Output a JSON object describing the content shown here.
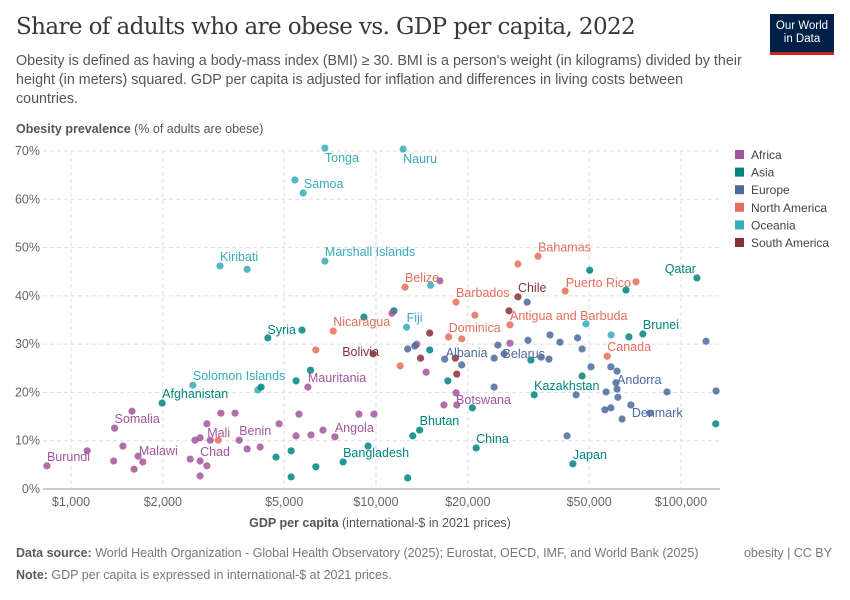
{
  "header": {
    "title": "Share of adults who are obese vs. GDP per capita, 2022",
    "subtitle": "Obesity is defined as having a body-mass index (BMI) ≥ 30. BMI is a person's weight (in kilograms) divided by their height (in meters) squared. GDP per capita is adjusted for inflation and differences in living costs between countries.",
    "logo": "Our World in Data"
  },
  "footer": {
    "source_label": "Data source:",
    "source": " World Health Organization - Global Health Observatory (2025); Eurostat, OECD, IMF, and World Bank (2025)",
    "note_label": "Note:",
    "note": " GDP per capita is expressed in international-$ at 2021 prices.",
    "license": "obesity | CC BY"
  },
  "chart_data": {
    "type": "scatter",
    "title": "Share of adults who are obese vs. GDP per capita, 2022",
    "ylabel_bold": "Obesity prevalence",
    "ylabel_rest": " (% of adults are obese)",
    "xlabel_bold": "GDP per capita",
    "xlabel_rest": " (international-$ in 2021 prices)",
    "x_scale": "log",
    "xlim": [
      810,
      134000
    ],
    "ylim": [
      0,
      70
    ],
    "grid": true,
    "x_ticks": [
      {
        "v": 1000,
        "label": "$1,000"
      },
      {
        "v": 2000,
        "label": "$2,000"
      },
      {
        "v": 5000,
        "label": "$5,000"
      },
      {
        "v": 10000,
        "label": "$10,000"
      },
      {
        "v": 20000,
        "label": "$20,000"
      },
      {
        "v": 50000,
        "label": "$50,000"
      },
      {
        "v": 100000,
        "label": "$100,000"
      }
    ],
    "y_ticks": [
      {
        "v": 0,
        "label": "0%"
      },
      {
        "v": 10,
        "label": "10%"
      },
      {
        "v": 20,
        "label": "20%"
      },
      {
        "v": 30,
        "label": "30%"
      },
      {
        "v": 40,
        "label": "40%"
      },
      {
        "v": 50,
        "label": "50%"
      },
      {
        "v": 60,
        "label": "60%"
      },
      {
        "v": 70,
        "label": "70%"
      }
    ],
    "legend_position": "right",
    "regions": [
      {
        "name": "Africa",
        "color": "#a2559c"
      },
      {
        "name": "Asia",
        "color": "#00847e"
      },
      {
        "name": "Europe",
        "color": "#4c6a9c"
      },
      {
        "name": "North America",
        "color": "#e56e5a"
      },
      {
        "name": "Oceania",
        "color": "#38aaba"
      },
      {
        "name": "South America",
        "color": "#883039"
      }
    ],
    "points": [
      {
        "r": "Oceania",
        "x": 6800,
        "y": 70.6,
        "label": "Tonga"
      },
      {
        "r": "Oceania",
        "x": 12270,
        "y": 70.4,
        "label": "Nauru"
      },
      {
        "r": "Oceania",
        "x": 5420,
        "y": 64.0,
        "label": "Samoa"
      },
      {
        "r": "Oceania",
        "x": 5770,
        "y": 61.3
      },
      {
        "r": "Oceania",
        "x": 3080,
        "y": 46.2,
        "label": "Kiribati"
      },
      {
        "r": "Oceania",
        "x": 3780,
        "y": 45.5
      },
      {
        "r": "Oceania",
        "x": 6800,
        "y": 47.2,
        "label": "Marshall Islands"
      },
      {
        "r": "Oceania",
        "x": 2510,
        "y": 21.5,
        "label": "Solomon Islands"
      },
      {
        "r": "Oceania",
        "x": 4100,
        "y": 20.5
      },
      {
        "r": "Oceania",
        "x": 12600,
        "y": 33.5,
        "label": "Fiji"
      },
      {
        "r": "Oceania",
        "x": 15100,
        "y": 42.2
      },
      {
        "r": "Oceania",
        "x": 48800,
        "y": 34.2
      },
      {
        "r": "Oceania",
        "x": 59000,
        "y": 31.9
      },
      {
        "r": "Asia",
        "x": 5720,
        "y": 32.9,
        "label": "Syria"
      },
      {
        "r": "Asia",
        "x": 4420,
        "y": 31.3
      },
      {
        "r": "Asia",
        "x": 1990,
        "y": 17.8,
        "label": "Afghanistan"
      },
      {
        "r": "Asia",
        "x": 4200,
        "y": 21.1
      },
      {
        "r": "Asia",
        "x": 5470,
        "y": 22.4
      },
      {
        "r": "Asia",
        "x": 6100,
        "y": 24.6
      },
      {
        "r": "Asia",
        "x": 7800,
        "y": 5.6,
        "label": "Bangladesh"
      },
      {
        "r": "Asia",
        "x": 9420,
        "y": 8.9
      },
      {
        "r": "Asia",
        "x": 4700,
        "y": 6.6
      },
      {
        "r": "Asia",
        "x": 5270,
        "y": 2.5
      },
      {
        "r": "Asia",
        "x": 6350,
        "y": 4.6
      },
      {
        "r": "Asia",
        "x": 5270,
        "y": 7.9
      },
      {
        "r": "Asia",
        "x": 12700,
        "y": 2.3
      },
      {
        "r": "Asia",
        "x": 13200,
        "y": 11.0
      },
      {
        "r": "Asia",
        "x": 13900,
        "y": 12.2,
        "label": "Bhutan"
      },
      {
        "r": "Asia",
        "x": 21300,
        "y": 8.5,
        "label": "China"
      },
      {
        "r": "Asia",
        "x": 44200,
        "y": 5.2,
        "label": "Japan"
      },
      {
        "r": "Asia",
        "x": 33000,
        "y": 19.5,
        "label": "Kazakhstan"
      },
      {
        "r": "Asia",
        "x": 112800,
        "y": 43.7,
        "label": "Qatar"
      },
      {
        "r": "Asia",
        "x": 75000,
        "y": 32.1,
        "label": "Brunei"
      },
      {
        "r": "Asia",
        "x": 50200,
        "y": 45.3
      },
      {
        "r": "Asia",
        "x": 66000,
        "y": 41.2
      },
      {
        "r": "Asia",
        "x": 67500,
        "y": 31.5
      },
      {
        "r": "Asia",
        "x": 130000,
        "y": 13.5
      },
      {
        "r": "Asia",
        "x": 9130,
        "y": 35.6
      },
      {
        "r": "Asia",
        "x": 11450,
        "y": 36.9
      },
      {
        "r": "Asia",
        "x": 20700,
        "y": 16.8
      },
      {
        "r": "Asia",
        "x": 17200,
        "y": 22.4
      },
      {
        "r": "Asia",
        "x": 32200,
        "y": 26.7
      },
      {
        "r": "Asia",
        "x": 47400,
        "y": 23.4
      },
      {
        "r": "Asia",
        "x": 15000,
        "y": 28.8
      },
      {
        "r": "Africa",
        "x": 834,
        "y": 4.8,
        "label": "Burundi"
      },
      {
        "r": "Africa",
        "x": 1130,
        "y": 7.9
      },
      {
        "r": "Africa",
        "x": 1390,
        "y": 12.6,
        "label": "Somalia"
      },
      {
        "r": "Africa",
        "x": 1585,
        "y": 16.1
      },
      {
        "r": "Africa",
        "x": 1480,
        "y": 8.9
      },
      {
        "r": "Africa",
        "x": 1380,
        "y": 5.8
      },
      {
        "r": "Africa",
        "x": 1610,
        "y": 4.1
      },
      {
        "r": "Africa",
        "x": 1660,
        "y": 6.8
      },
      {
        "r": "Africa",
        "x": 1720,
        "y": 5.6,
        "label": "Malawi"
      },
      {
        "r": "Africa",
        "x": 2460,
        "y": 6.2
      },
      {
        "r": "Africa",
        "x": 2550,
        "y": 10.1
      },
      {
        "r": "Africa",
        "x": 2650,
        "y": 10.6
      },
      {
        "r": "Africa",
        "x": 2650,
        "y": 2.7
      },
      {
        "r": "Africa",
        "x": 2650,
        "y": 5.8,
        "label": "Chad"
      },
      {
        "r": "Africa",
        "x": 2790,
        "y": 4.8
      },
      {
        "r": "Africa",
        "x": 2860,
        "y": 10.1,
        "label": "Mali"
      },
      {
        "r": "Africa",
        "x": 2790,
        "y": 13.5
      },
      {
        "r": "Africa",
        "x": 3100,
        "y": 15.7
      },
      {
        "r": "Africa",
        "x": 3450,
        "y": 15.7
      },
      {
        "r": "Africa",
        "x": 3560,
        "y": 10.1,
        "label": "Benin"
      },
      {
        "r": "Africa",
        "x": 3780,
        "y": 8.3
      },
      {
        "r": "Africa",
        "x": 4170,
        "y": 8.7
      },
      {
        "r": "Africa",
        "x": 4810,
        "y": 13.5
      },
      {
        "r": "Africa",
        "x": 5590,
        "y": 15.5
      },
      {
        "r": "Africa",
        "x": 5470,
        "y": 11.0
      },
      {
        "r": "Africa",
        "x": 6120,
        "y": 11.2
      },
      {
        "r": "Africa",
        "x": 6700,
        "y": 12.2
      },
      {
        "r": "Africa",
        "x": 7330,
        "y": 10.8,
        "label": "Angola"
      },
      {
        "r": "Africa",
        "x": 8790,
        "y": 15.5
      },
      {
        "r": "Africa",
        "x": 9850,
        "y": 15.5
      },
      {
        "r": "Africa",
        "x": 5980,
        "y": 21.1,
        "label": "Mauritania"
      },
      {
        "r": "Africa",
        "x": 11280,
        "y": 36.4
      },
      {
        "r": "Africa",
        "x": 16200,
        "y": 43.1
      },
      {
        "r": "Africa",
        "x": 13600,
        "y": 30.0
      },
      {
        "r": "Africa",
        "x": 27500,
        "y": 30.2
      },
      {
        "r": "Africa",
        "x": 18300,
        "y": 19.9,
        "label": "Botswana"
      },
      {
        "r": "Africa",
        "x": 16700,
        "y": 17.4
      },
      {
        "r": "Africa",
        "x": 18400,
        "y": 17.4
      },
      {
        "r": "Africa",
        "x": 14600,
        "y": 24.2
      },
      {
        "r": "Europe",
        "x": 16800,
        "y": 26.9,
        "label": "Albania"
      },
      {
        "r": "Europe",
        "x": 26300,
        "y": 28.0
      },
      {
        "r": "Europe",
        "x": 19100,
        "y": 25.7
      },
      {
        "r": "Europe",
        "x": 24400,
        "y": 27.1
      },
      {
        "r": "Europe",
        "x": 24400,
        "y": 21.1
      },
      {
        "r": "Europe",
        "x": 25100,
        "y": 29.8
      },
      {
        "r": "Europe",
        "x": 31300,
        "y": 38.7
      },
      {
        "r": "Europe",
        "x": 31500,
        "y": 30.8
      },
      {
        "r": "Europe",
        "x": 37200,
        "y": 31.9
      },
      {
        "r": "Europe",
        "x": 45800,
        "y": 31.3
      },
      {
        "r": "Europe",
        "x": 34800,
        "y": 27.3
      },
      {
        "r": "Europe",
        "x": 36900,
        "y": 26.9,
        "label": "Belarus"
      },
      {
        "r": "Europe",
        "x": 40100,
        "y": 30.4
      },
      {
        "r": "Europe",
        "x": 47400,
        "y": 29.0
      },
      {
        "r": "Europe",
        "x": 50700,
        "y": 25.3
      },
      {
        "r": "Europe",
        "x": 56800,
        "y": 20.1
      },
      {
        "r": "Europe",
        "x": 58900,
        "y": 25.3
      },
      {
        "r": "Europe",
        "x": 61700,
        "y": 24.4
      },
      {
        "r": "Europe",
        "x": 61200,
        "y": 22.0
      },
      {
        "r": "Europe",
        "x": 61700,
        "y": 20.7,
        "label": "Andorra"
      },
      {
        "r": "Europe",
        "x": 62100,
        "y": 19.0
      },
      {
        "r": "Europe",
        "x": 56300,
        "y": 16.4
      },
      {
        "r": "Europe",
        "x": 58900,
        "y": 16.8
      },
      {
        "r": "Europe",
        "x": 68500,
        "y": 17.4,
        "label": "Denmark"
      },
      {
        "r": "Europe",
        "x": 64100,
        "y": 14.5
      },
      {
        "r": "Europe",
        "x": 79100,
        "y": 15.7
      },
      {
        "r": "Europe",
        "x": 90000,
        "y": 20.1
      },
      {
        "r": "Europe",
        "x": 120800,
        "y": 30.6
      },
      {
        "r": "Europe",
        "x": 130300,
        "y": 20.3
      },
      {
        "r": "Europe",
        "x": 42300,
        "y": 11.0
      },
      {
        "r": "Europe",
        "x": 45300,
        "y": 19.5
      },
      {
        "r": "Europe",
        "x": 12700,
        "y": 29.0
      },
      {
        "r": "Europe",
        "x": 13400,
        "y": 29.6
      },
      {
        "r": "North America",
        "x": 34000,
        "y": 48.2,
        "label": "Bahamas"
      },
      {
        "r": "North America",
        "x": 29200,
        "y": 46.6
      },
      {
        "r": "North America",
        "x": 12450,
        "y": 41.8,
        "label": "Belize"
      },
      {
        "r": "North America",
        "x": 18300,
        "y": 38.7,
        "label": "Barbados"
      },
      {
        "r": "North America",
        "x": 71200,
        "y": 42.9,
        "label": "Puerto Rico"
      },
      {
        "r": "North America",
        "x": 41700,
        "y": 41.0
      },
      {
        "r": "North America",
        "x": 27500,
        "y": 34.0,
        "label": "Antigua and Barbuda"
      },
      {
        "r": "North America",
        "x": 17300,
        "y": 31.5,
        "label": "Dominica"
      },
      {
        "r": "North America",
        "x": 21100,
        "y": 36.0
      },
      {
        "r": "North America",
        "x": 19100,
        "y": 31.1
      },
      {
        "r": "North America",
        "x": 7240,
        "y": 32.7,
        "label": "Nicaragua"
      },
      {
        "r": "North America",
        "x": 6350,
        "y": 28.8
      },
      {
        "r": "North America",
        "x": 57300,
        "y": 27.5,
        "label": "Canada"
      },
      {
        "r": "North America",
        "x": 12000,
        "y": 25.5
      },
      {
        "r": "North America",
        "x": 3040,
        "y": 10.1
      },
      {
        "r": "South America",
        "x": 29200,
        "y": 39.8,
        "label": "Chile"
      },
      {
        "r": "South America",
        "x": 9780,
        "y": 28.0,
        "label": "Bolivia"
      },
      {
        "r": "South America",
        "x": 15000,
        "y": 32.3
      },
      {
        "r": "South America",
        "x": 14000,
        "y": 27.1
      },
      {
        "r": "South America",
        "x": 18200,
        "y": 27.1
      },
      {
        "r": "South America",
        "x": 18400,
        "y": 23.8
      },
      {
        "r": "South America",
        "x": 27300,
        "y": 36.9
      }
    ]
  }
}
